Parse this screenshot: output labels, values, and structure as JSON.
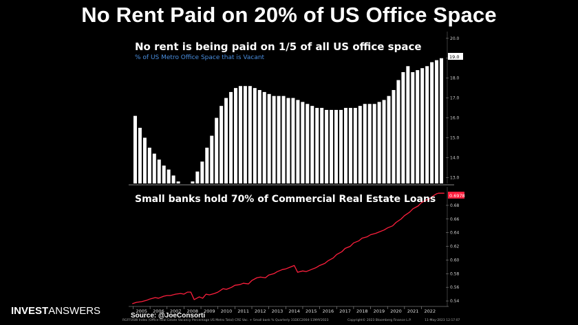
{
  "header": {
    "title": "No Rent Paid on 20% of US Office Space"
  },
  "brand": {
    "bold": "INVEST",
    "light": "ANSWERS"
  },
  "source": "Source: @JoeConsorti",
  "footer": {
    "left": "RGFFUSW Index (Office Real Estate Vacancy Percentage US Metro Total) CRE Vac. + Small bank % Quarterly 31DEC2004-11MAY2023",
    "mid": "Copyright© 2023 Bloomberg Finance L.P.",
    "right": "11-May-2023 12:17:07"
  },
  "chart_data": [
    {
      "type": "bar",
      "title": "No rent is being paid on 1/5 of all US office space",
      "subtitle": "% of US Metro Office Space that is Vacant",
      "ylim": [
        12.7,
        20.2
      ],
      "yticks": [
        "20.0",
        "19.0",
        "18.0",
        "17.0",
        "16.0",
        "15.0",
        "14.0",
        "13.0"
      ],
      "last_value_label": "19.0",
      "values": [
        16.1,
        15.5,
        15.0,
        14.5,
        14.2,
        13.9,
        13.6,
        13.4,
        13.1,
        12.8,
        12.5,
        12.6,
        12.8,
        13.3,
        13.8,
        14.5,
        15.1,
        16.0,
        16.6,
        17.0,
        17.3,
        17.5,
        17.6,
        17.6,
        17.6,
        17.5,
        17.4,
        17.3,
        17.2,
        17.1,
        17.1,
        17.1,
        17.0,
        17.0,
        16.9,
        16.8,
        16.7,
        16.6,
        16.5,
        16.5,
        16.4,
        16.4,
        16.4,
        16.4,
        16.5,
        16.5,
        16.5,
        16.6,
        16.7,
        16.7,
        16.7,
        16.8,
        16.9,
        17.1,
        17.4,
        17.9,
        18.3,
        18.6,
        18.3,
        18.4,
        18.5,
        18.6,
        18.8,
        18.9,
        19.0
      ]
    },
    {
      "type": "line",
      "title": "Small banks hold 70% of Commercial Real Estate Loans",
      "ylim": [
        0.532,
        0.7
      ],
      "yticks": [
        "0.68",
        "0.66",
        "0.64",
        "0.62",
        "0.60",
        "0.58",
        "0.56",
        "0.54"
      ],
      "last_value_label": "0.6978",
      "series": [
        {
          "color": "#ff1f3d",
          "x": [
            2004.95,
            2005.2,
            2005.5,
            2005.8,
            2006.0,
            2006.3,
            2006.5,
            2006.8,
            2007.0,
            2007.2,
            2007.5,
            2007.8,
            2008.0,
            2008.2,
            2008.4,
            2008.6,
            2008.9,
            2009.1,
            2009.3,
            2009.5,
            2009.8,
            2010.0,
            2010.3,
            2010.5,
            2010.8,
            2011.0,
            2011.3,
            2011.5,
            2011.8,
            2012.0,
            2012.3,
            2012.5,
            2012.8,
            2013.0,
            2013.3,
            2013.5,
            2013.8,
            2014.0,
            2014.3,
            2014.5,
            2014.7,
            2015.0,
            2015.2,
            2015.5,
            2015.8,
            2016.0,
            2016.3,
            2016.5,
            2016.8,
            2017.0,
            2017.3,
            2017.5,
            2017.8,
            2018.0,
            2018.3,
            2018.5,
            2018.8,
            2019.0,
            2019.3,
            2019.5,
            2019.8,
            2020.0,
            2020.3,
            2020.5,
            2020.8,
            2021.0,
            2021.3,
            2021.5,
            2021.8,
            2022.0,
            2022.3,
            2022.5,
            2022.7,
            2022.9,
            2023.0,
            2023.2,
            2023.35
          ],
          "values": [
            0.536,
            0.538,
            0.539,
            0.541,
            0.543,
            0.545,
            0.544,
            0.547,
            0.548,
            0.548,
            0.55,
            0.551,
            0.55,
            0.553,
            0.553,
            0.542,
            0.546,
            0.544,
            0.55,
            0.549,
            0.551,
            0.553,
            0.558,
            0.557,
            0.56,
            0.563,
            0.564,
            0.566,
            0.565,
            0.57,
            0.574,
            0.575,
            0.574,
            0.578,
            0.58,
            0.583,
            0.586,
            0.587,
            0.59,
            0.592,
            0.582,
            0.584,
            0.583,
            0.586,
            0.589,
            0.592,
            0.595,
            0.599,
            0.603,
            0.608,
            0.612,
            0.617,
            0.62,
            0.625,
            0.628,
            0.632,
            0.634,
            0.637,
            0.639,
            0.641,
            0.644,
            0.647,
            0.65,
            0.655,
            0.66,
            0.665,
            0.67,
            0.675,
            0.679,
            0.684,
            0.688,
            0.69,
            0.694,
            0.697,
            0.6978,
            0.6978,
            0.6978
          ]
        }
      ]
    }
  ],
  "xaxis": {
    "labels": [
      "2005",
      "2006",
      "2007",
      "2008",
      "2009",
      "2010",
      "2011",
      "2012",
      "2013",
      "2014",
      "2015",
      "2016",
      "2017",
      "2018",
      "2019",
      "2020",
      "2021",
      "2022"
    ],
    "xlim": [
      2004.9,
      2023.4
    ]
  },
  "colors": {
    "bars": "#ffffff",
    "line": "#ff1f3d",
    "subtitle": "#4a8fe0",
    "background": "#000000"
  }
}
